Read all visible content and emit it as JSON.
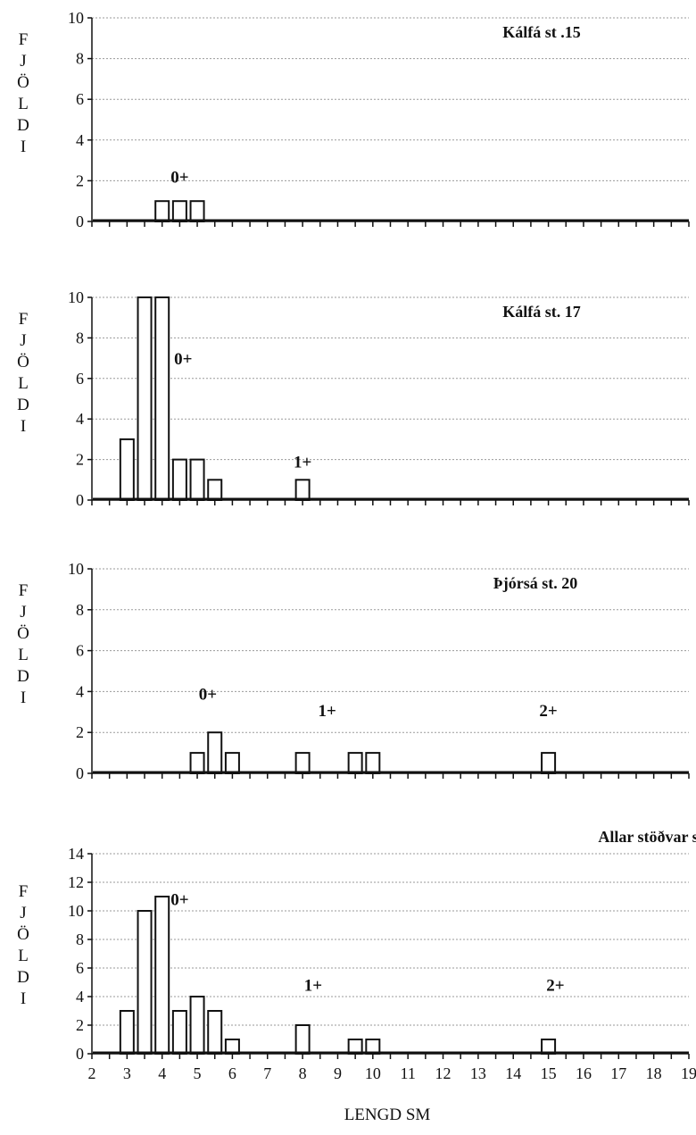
{
  "chart_data": [
    {
      "type": "bar",
      "title": "Kálfá st .15",
      "ylabel": "FJÖLDI",
      "ylim": [
        0,
        10
      ],
      "yticks": [
        0,
        2,
        4,
        6,
        8,
        10
      ],
      "grid": true,
      "bars": [
        {
          "x": 4.0,
          "y": 1
        },
        {
          "x": 4.5,
          "y": 1
        },
        {
          "x": 5.0,
          "y": 1
        }
      ],
      "annotations": [
        {
          "text": "0+",
          "x": 4.5,
          "y": 1.9
        }
      ]
    },
    {
      "type": "bar",
      "title": "Kálfá st. 17",
      "ylabel": "FJÖLDI",
      "ylim": [
        0,
        10
      ],
      "yticks": [
        0,
        2,
        4,
        6,
        8,
        10
      ],
      "grid": true,
      "bars": [
        {
          "x": 3.0,
          "y": 3
        },
        {
          "x": 3.5,
          "y": 10
        },
        {
          "x": 4.0,
          "y": 10
        },
        {
          "x": 4.5,
          "y": 2
        },
        {
          "x": 5.0,
          "y": 2
        },
        {
          "x": 5.5,
          "y": 1
        },
        {
          "x": 8.0,
          "y": 1
        }
      ],
      "annotations": [
        {
          "text": "0+",
          "x": 4.6,
          "y": 6.7
        },
        {
          "text": "1+",
          "x": 8.0,
          "y": 1.6
        }
      ]
    },
    {
      "type": "bar",
      "title": "Þjórsá  st.  20",
      "ylabel": "FJÖLDI",
      "ylim": [
        0,
        10
      ],
      "yticks": [
        0,
        2,
        4,
        6,
        8,
        10
      ],
      "grid": true,
      "bars": [
        {
          "x": 5.0,
          "y": 1
        },
        {
          "x": 5.5,
          "y": 2
        },
        {
          "x": 6.0,
          "y": 1
        },
        {
          "x": 8.0,
          "y": 1
        },
        {
          "x": 9.5,
          "y": 1
        },
        {
          "x": 10.0,
          "y": 1
        },
        {
          "x": 15.0,
          "y": 1
        }
      ],
      "annotations": [
        {
          "text": "0+",
          "x": 5.3,
          "y": 3.6
        },
        {
          "text": "1+",
          "x": 8.7,
          "y": 2.8
        },
        {
          "text": "2+",
          "x": 15.0,
          "y": 2.8
        }
      ]
    },
    {
      "type": "bar",
      "title": "Allar stöðvar saman",
      "ylabel": "FJÖLDI",
      "xlabel": "LENGD SM",
      "ylim": [
        0,
        14
      ],
      "yticks": [
        0,
        2,
        4,
        6,
        8,
        10,
        12,
        14
      ],
      "xlim": [
        2,
        19
      ],
      "xticks": [
        2,
        3,
        4,
        5,
        6,
        7,
        8,
        9,
        10,
        11,
        12,
        13,
        14,
        15,
        16,
        17,
        18,
        19
      ],
      "grid": true,
      "bars": [
        {
          "x": 3.0,
          "y": 3
        },
        {
          "x": 3.5,
          "y": 10
        },
        {
          "x": 4.0,
          "y": 11
        },
        {
          "x": 4.5,
          "y": 3
        },
        {
          "x": 5.0,
          "y": 4
        },
        {
          "x": 5.5,
          "y": 3
        },
        {
          "x": 6.0,
          "y": 1
        },
        {
          "x": 8.0,
          "y": 2
        },
        {
          "x": 9.5,
          "y": 1
        },
        {
          "x": 10.0,
          "y": 1
        },
        {
          "x": 15.0,
          "y": 1
        }
      ],
      "annotations": [
        {
          "text": "0+",
          "x": 4.5,
          "y": 10.4
        },
        {
          "text": "1+",
          "x": 8.3,
          "y": 4.4
        },
        {
          "text": "2+",
          "x": 15.2,
          "y": 4.4
        }
      ]
    }
  ]
}
